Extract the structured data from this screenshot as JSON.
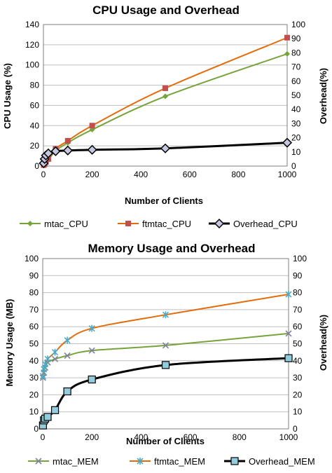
{
  "chart_data": [
    {
      "type": "line",
      "title": "CPU Usage and Overhead",
      "xlabel": "Number of Clients",
      "ylabel": "CPU Usage (%)",
      "y2label": "Overhead(%)",
      "xlim": [
        0,
        1000
      ],
      "ylim": [
        0,
        140
      ],
      "y2lim": [
        0,
        100
      ],
      "xticks": [
        0,
        200,
        400,
        600,
        800,
        1000
      ],
      "yticks": [
        0,
        20,
        40,
        60,
        80,
        100,
        120,
        140
      ],
      "y2ticks": [
        0,
        10,
        20,
        30,
        40,
        50,
        60,
        70,
        80,
        90,
        100
      ],
      "grid": "horizontal",
      "legend": "bottom",
      "x": [
        1,
        5,
        10,
        20,
        50,
        100,
        200,
        500,
        1000
      ],
      "series": [
        {
          "name": "mtac_CPU",
          "axis": "left",
          "color": "#77a33b",
          "marker": "diamond",
          "values": [
            0.5,
            1.5,
            3,
            6,
            15,
            23,
            36,
            69,
            111
          ]
        },
        {
          "name": "ftmtac_CPU",
          "axis": "left",
          "color": "#e36c0a",
          "markerColor": "#c0504d",
          "marker": "square",
          "values": [
            1,
            2,
            4,
            7,
            17,
            25,
            40,
            77,
            127
          ]
        },
        {
          "name": "Overhead_CPU",
          "axis": "right",
          "color": "#000000",
          "markerColor": "#c6c6e0",
          "marker": "diamond-outline",
          "values": [
            2,
            5,
            7.5,
            9,
            10.5,
            11,
            11.5,
            12.5,
            16.5
          ]
        }
      ]
    },
    {
      "type": "line",
      "title": "Memory Usage and Overhead",
      "xlabel": "Number of Clients",
      "ylabel": "Memory Usage (MB)",
      "y2label": "Overhead(%)",
      "xlim": [
        0,
        1000
      ],
      "ylim": [
        0,
        100
      ],
      "y2lim": [
        0,
        100
      ],
      "xticks": [
        0,
        200,
        400,
        600,
        800,
        1000
      ],
      "yticks": [
        0,
        10,
        20,
        30,
        40,
        50,
        60,
        70,
        80,
        90,
        100
      ],
      "y2ticks": [
        0,
        10,
        20,
        30,
        40,
        50,
        60,
        70,
        80,
        90,
        100
      ],
      "grid": "horizontal",
      "legend": "bottom",
      "x": [
        1,
        5,
        10,
        20,
        50,
        100,
        200,
        500,
        1000
      ],
      "series": [
        {
          "name": "mtac_MEM",
          "axis": "left",
          "color": "#77a33b",
          "markerColor": "#7f7f9f",
          "marker": "x",
          "values": [
            30,
            33,
            36,
            39,
            41,
            43,
            46,
            49,
            56
          ]
        },
        {
          "name": "ftmtac_MEM",
          "axis": "left",
          "color": "#e36c0a",
          "markerColor": "#4bacc6",
          "marker": "star",
          "values": [
            31,
            35,
            38,
            41,
            45,
            52,
            59,
            67,
            79
          ]
        },
        {
          "name": "Overhead_MEM",
          "axis": "right",
          "color": "#000000",
          "markerColor": "#93cddd",
          "marker": "square-outline",
          "values": [
            2,
            5,
            6,
            7,
            11,
            22,
            29,
            37.5,
            41.5
          ]
        }
      ]
    }
  ]
}
